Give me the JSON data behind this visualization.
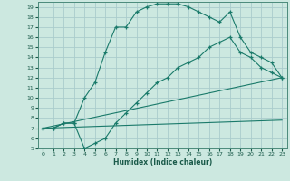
{
  "xlabel": "Humidex (Indice chaleur)",
  "background_color": "#cce8e0",
  "grid_color": "#aacccc",
  "line_color": "#1a7a6a",
  "xlim": [
    -0.5,
    23.5
  ],
  "ylim": [
    5,
    19.5
  ],
  "xticks": [
    0,
    1,
    2,
    3,
    4,
    5,
    6,
    7,
    8,
    9,
    10,
    11,
    12,
    13,
    14,
    15,
    16,
    17,
    18,
    19,
    20,
    21,
    22,
    23
  ],
  "yticks": [
    5,
    6,
    7,
    8,
    9,
    10,
    11,
    12,
    13,
    14,
    15,
    16,
    17,
    18,
    19
  ],
  "line1_x": [
    0,
    1,
    2,
    3,
    4,
    5,
    6,
    7,
    8,
    9,
    10,
    11,
    12,
    13,
    14,
    15,
    16,
    17,
    18,
    19,
    20,
    21,
    22,
    23
  ],
  "line1_y": [
    7,
    7,
    7.5,
    7.5,
    10,
    11.5,
    14.5,
    17,
    17,
    18.5,
    19,
    19.3,
    19.3,
    19.3,
    19.0,
    18.5,
    18.0,
    17.5,
    18.5,
    16.0,
    14.5,
    14.0,
    13.5,
    12.0
  ],
  "line2_x": [
    0,
    1,
    2,
    3,
    4,
    5,
    6,
    7,
    8,
    9,
    10,
    11,
    12,
    13,
    14,
    15,
    16,
    17,
    18,
    19,
    20,
    21,
    22,
    23
  ],
  "line2_y": [
    7,
    7,
    7.5,
    7.5,
    5.0,
    5.5,
    6.0,
    7.5,
    8.5,
    9.5,
    10.5,
    11.5,
    12.0,
    13.0,
    13.5,
    14.0,
    15.0,
    15.5,
    16.0,
    14.5,
    14.0,
    13.0,
    12.5,
    12.0
  ],
  "line3_x": [
    0,
    23
  ],
  "line3_y": [
    7.0,
    12.0
  ],
  "line4_x": [
    0,
    23
  ],
  "line4_y": [
    7.0,
    7.8
  ]
}
